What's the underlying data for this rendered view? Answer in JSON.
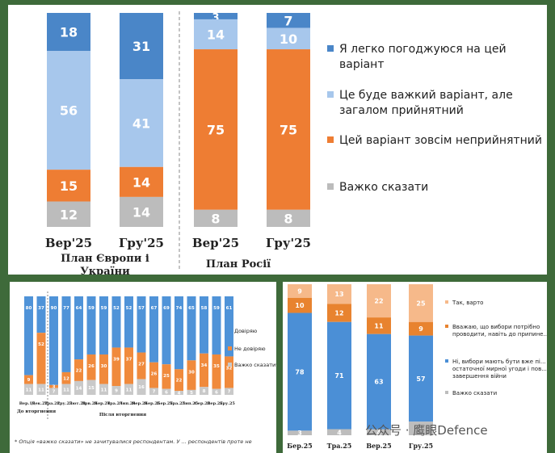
{
  "colors": {
    "agree": "#4a86c8",
    "difficult": "#a7c7ec",
    "unacceptable": "#ee7d33",
    "hard_to_say": "#bcbcbc",
    "trust": "#4f93d8",
    "distrust": "#f08a3c",
    "hard": "#c9c9c9",
    "yes_worth": "#f6b98a",
    "even_before": "#e8832f",
    "no_after": "#4b8fd6",
    "hard2": "#bdbdbd"
  },
  "top": {
    "chart_data": {
      "type": "bar",
      "stacked": true,
      "normalized": true,
      "categories": [
        "Вер'25",
        "Гру'25",
        "Вер'25",
        "Гру'25"
      ],
      "groups": [
        "План Європи і України",
        "План Росії"
      ],
      "series": [
        {
          "key": "agree",
          "name": "Я легко погоджуюся на цей варіант",
          "values": [
            18,
            31,
            3,
            7
          ]
        },
        {
          "key": "difficult",
          "name": "Це буде важкий варіант, але загалом прийнятний",
          "values": [
            56,
            41,
            14,
            10
          ]
        },
        {
          "key": "unacceptable",
          "name": "Цей варіант зовсім неприйнятний",
          "values": [
            15,
            14,
            75,
            75
          ]
        },
        {
          "key": "hard_to_say",
          "name": "Важко сказати",
          "values": [
            12,
            14,
            8,
            8
          ]
        }
      ]
    }
  },
  "left": {
    "chart_data": {
      "type": "bar",
      "stacked": true,
      "normalized": true,
      "categories": [
        "Вер.19",
        "Дек.22",
        "Тра.22",
        "Гру.23",
        "Лют.24",
        "Трв.24",
        "Бер.24",
        "Тра.24",
        "Лип.24",
        "Вер.24",
        "Бер.25",
        "Бер.25",
        "Тра.25",
        "Лип.25",
        "Сер.25",
        "Вер.25",
        "Гру.25"
      ],
      "bottom_labels": [
        "Вер.19",
        "Дек.22",
        "Тра.22",
        "Гру.23",
        "Лют.24",
        "Трв.24",
        "Бер.24",
        "Тра.24",
        "Лип.24",
        "Вер.24",
        "Бер.25",
        "Бер.25",
        "Тра.25",
        "Лип.25",
        "Сер.25",
        "Вер.25",
        "Гру.25"
      ],
      "segment_labels_visible": true,
      "series": [
        {
          "key": "trust",
          "name": "Довіряю",
          "values": [
            80,
            37,
            90,
            77,
            64,
            59,
            59,
            52,
            52,
            57,
            67,
            69,
            74,
            65,
            58,
            59,
            61
          ]
        },
        {
          "key": "distrust",
          "name": "Не довіряю",
          "values": [
            9,
            52,
            3,
            12,
            22,
            26,
            30,
            39,
            37,
            27,
            26,
            25,
            22,
            30,
            34,
            35,
            32
          ]
        },
        {
          "key": "hard",
          "name": "Важко сказати*",
          "values": [
            11,
            11,
            7,
            11,
            14,
            15,
            11,
            9,
            11,
            16,
            7,
            6,
            4,
            5,
            8,
            6,
            7
          ]
        }
      ],
      "group_labels": [
        "До вторгнення",
        "Після вторгнення"
      ]
    },
    "note": "* Опція «важко сказати» не зачитувалися респондентам. У ... респондентів проте не"
  },
  "right": {
    "chart_data": {
      "type": "bar",
      "stacked": true,
      "normalized": true,
      "categories": [
        "Бер.25",
        "Тра.25",
        "Вер.25",
        "Гру.25"
      ],
      "series": [
        {
          "key": "yes_worth",
          "name": "Так, варто",
          "values": [
            9,
            13,
            22,
            25
          ]
        },
        {
          "key": "even_before",
          "name": "Вважаю, що вибори потрібно проводити, навіть до припине...",
          "values": [
            10,
            12,
            11,
            9
          ]
        },
        {
          "key": "no_after",
          "name": "Ні, вибори мають бути вже пі... остаточної мирної угоди і пов... завершення війни",
          "values": [
            78,
            71,
            63,
            57
          ]
        },
        {
          "key": "hard2",
          "name": "Важко сказати",
          "values": [
            3,
            4,
            4,
            9
          ]
        }
      ]
    }
  },
  "watermark": "公众号 · 鹰眼Defence"
}
